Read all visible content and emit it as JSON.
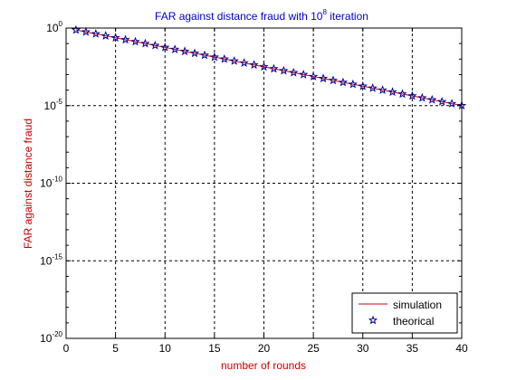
{
  "chart_data": {
    "type": "line",
    "title": {
      "base": "FAR against distance fraud with 10",
      "exp": "8",
      "rest": " iteration"
    },
    "xlabel": "number of rounds",
    "ylabel": "FAR against distance fraud",
    "xlim": [
      0,
      40
    ],
    "ylim_log10": [
      -20,
      0
    ],
    "yscale": "log",
    "grid": true,
    "legend_position": "bottom-right",
    "x_ticks": [
      "0",
      "5",
      "10",
      "15",
      "20",
      "25",
      "30",
      "35",
      "40"
    ],
    "y_ticks": [
      {
        "base": "10",
        "exp": "0"
      },
      {
        "base": "10",
        "exp": "-5"
      },
      {
        "base": "10",
        "exp": "-10"
      },
      {
        "base": "10",
        "exp": "-15"
      },
      {
        "base": "10",
        "exp": "-20"
      }
    ],
    "x": [
      1,
      2,
      3,
      4,
      5,
      6,
      7,
      8,
      9,
      10,
      11,
      12,
      13,
      14,
      15,
      16,
      17,
      18,
      19,
      20,
      21,
      22,
      23,
      24,
      25,
      26,
      27,
      28,
      29,
      30,
      31,
      32,
      33,
      34,
      35,
      36,
      37,
      38,
      39,
      40
    ],
    "series": [
      {
        "name": "simulation",
        "color": "#cc0000",
        "style": "line",
        "values": [
          0.75,
          0.5625,
          0.421875,
          0.31640625,
          0.2373046875,
          0.1779785156,
          0.1334838867,
          0.100112915,
          0.0750846863,
          0.0563135147,
          0.042235136,
          0.031676352,
          0.023757264,
          0.017817948,
          0.013363461,
          0.010022596,
          0.007516947,
          0.00563771,
          0.004228283,
          0.003171212,
          0.002378409,
          0.001783807,
          0.001337855,
          0.001003391,
          0.000752543,
          0.000564408,
          0.000423306,
          0.000317479,
          0.00023811,
          0.000178582,
          0.000133937,
          0.000100452,
          7.53393e-05,
          5.65045e-05,
          4.23784e-05,
          3.17838e-05,
          2.38378e-05,
          1.78784e-05,
          1.34088e-05,
          1.00566e-05
        ]
      },
      {
        "name": "theorical",
        "color": "#000099",
        "style": "star",
        "values": [
          0.75,
          0.5625,
          0.421875,
          0.31640625,
          0.2373046875,
          0.1779785156,
          0.1334838867,
          0.100112915,
          0.0750846863,
          0.0563135147,
          0.042235136,
          0.031676352,
          0.023757264,
          0.017817948,
          0.013363461,
          0.010022596,
          0.007516947,
          0.00563771,
          0.004228283,
          0.003171212,
          0.002378409,
          0.001783807,
          0.001337855,
          0.001003391,
          0.000752543,
          0.000564408,
          0.000423306,
          0.000317479,
          0.00023811,
          0.000178582,
          0.000133937,
          0.000100452,
          7.53393e-05,
          5.65045e-05,
          4.23784e-05,
          3.17838e-05,
          2.38378e-05,
          1.78784e-05,
          1.34088e-05,
          1.00566e-05
        ]
      }
    ],
    "colors": {
      "title": "#0000cc",
      "axis_label": "#cc0000",
      "grid": "#000000"
    }
  }
}
